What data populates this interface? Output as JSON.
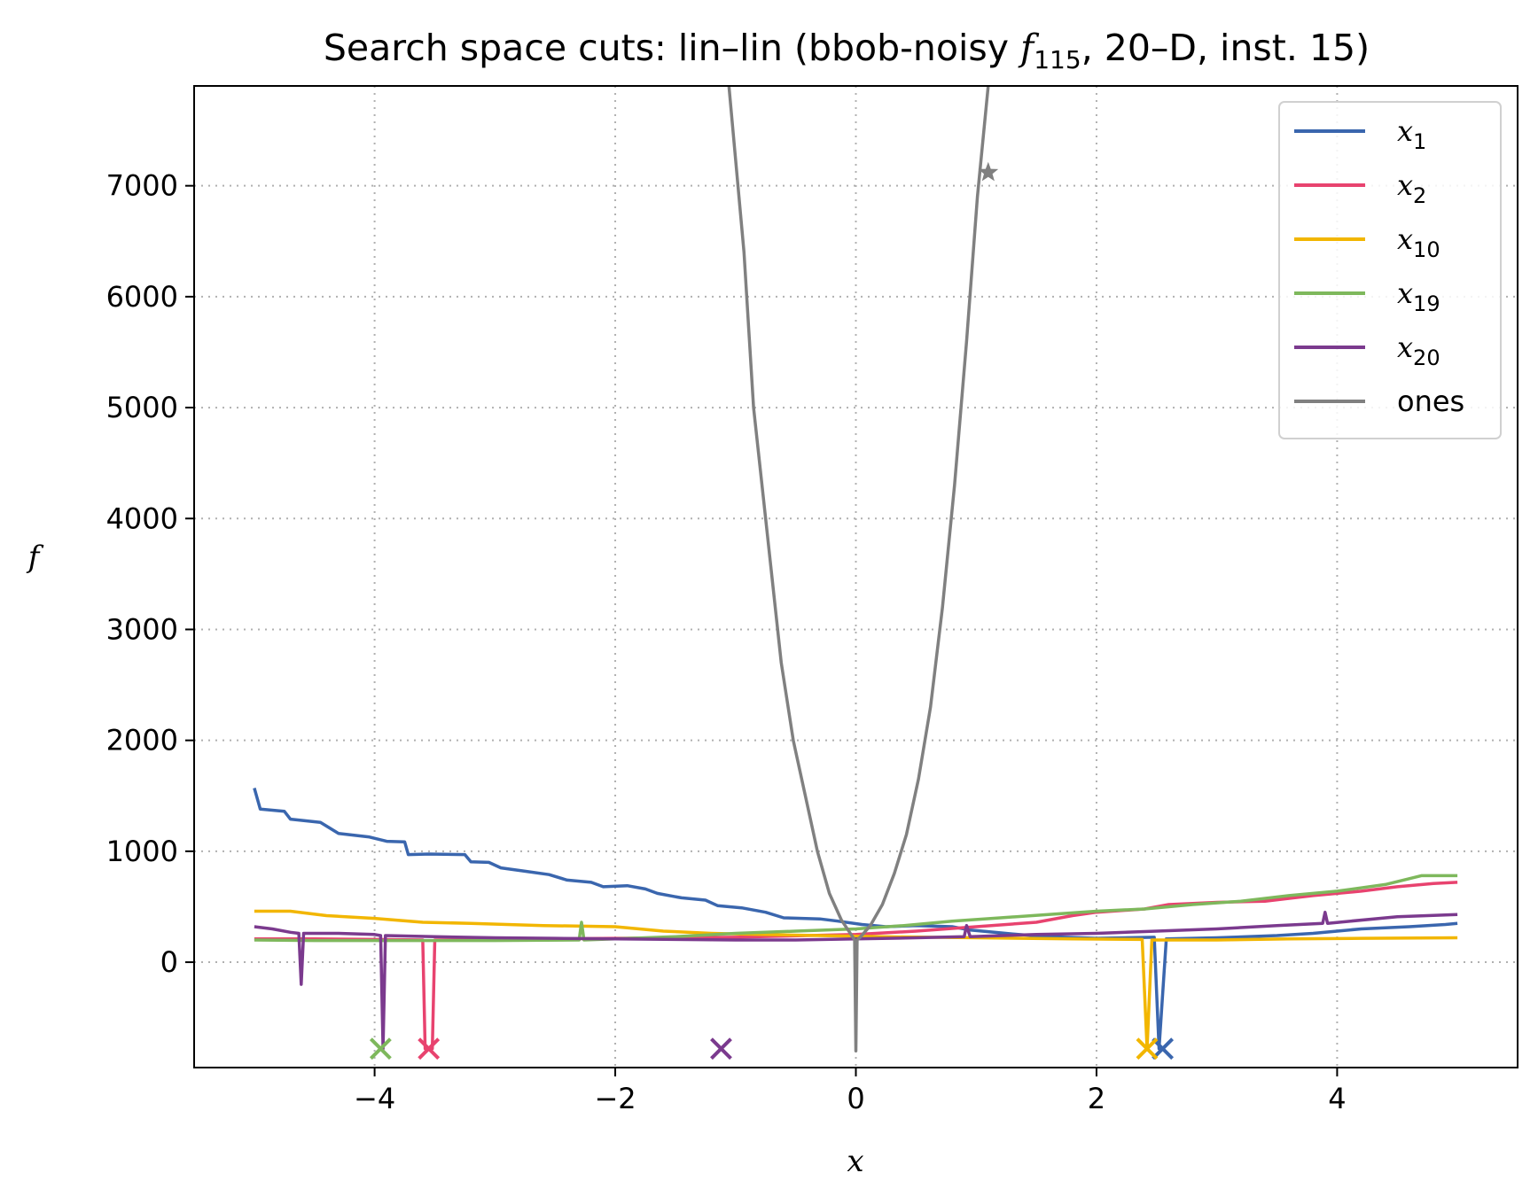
{
  "chart_data": {
    "type": "line",
    "title": {
      "prefix": "Search space cuts: lin–lin (bbob-noisy ",
      "func_symbol": "f",
      "func_index": "115",
      "suffix": ", 20–D, inst. 15)"
    },
    "xlabel": "x",
    "ylabel": "f",
    "xlim": [
      -5.5,
      5.5
    ],
    "ylim": [
      -950,
      7900
    ],
    "xticks": [
      {
        "value": -4,
        "label": "−4"
      },
      {
        "value": -2,
        "label": "−2"
      },
      {
        "value": 0,
        "label": "0"
      },
      {
        "value": 2,
        "label": "2"
      },
      {
        "value": 4,
        "label": "4"
      }
    ],
    "yticks": [
      {
        "value": 0,
        "label": "0"
      },
      {
        "value": 1000,
        "label": "1000"
      },
      {
        "value": 2000,
        "label": "2000"
      },
      {
        "value": 3000,
        "label": "3000"
      },
      {
        "value": 4000,
        "label": "4000"
      },
      {
        "value": 5000,
        "label": "5000"
      },
      {
        "value": 6000,
        "label": "6000"
      },
      {
        "value": 7000,
        "label": "7000"
      }
    ],
    "grid": true,
    "legend_position": "top-right",
    "series": [
      {
        "key": "x1",
        "name": "x",
        "sub": "1",
        "color": "#3A66AE",
        "points": [
          [
            -5,
            1570
          ],
          [
            -4.95,
            1380
          ],
          [
            -4.75,
            1360
          ],
          [
            -4.7,
            1290
          ],
          [
            -4.45,
            1260
          ],
          [
            -4.3,
            1160
          ],
          [
            -4.05,
            1130
          ],
          [
            -3.9,
            1090
          ],
          [
            -3.75,
            1085
          ],
          [
            -3.72,
            970
          ],
          [
            -3.55,
            975
          ],
          [
            -3.25,
            970
          ],
          [
            -3.2,
            905
          ],
          [
            -3.05,
            900
          ],
          [
            -2.95,
            850
          ],
          [
            -2.75,
            820
          ],
          [
            -2.55,
            790
          ],
          [
            -2.4,
            740
          ],
          [
            -2.2,
            720
          ],
          [
            -2.1,
            680
          ],
          [
            -1.9,
            690
          ],
          [
            -1.75,
            660
          ],
          [
            -1.65,
            620
          ],
          [
            -1.45,
            580
          ],
          [
            -1.25,
            560
          ],
          [
            -1.15,
            510
          ],
          [
            -0.95,
            490
          ],
          [
            -0.75,
            450
          ],
          [
            -0.6,
            400
          ],
          [
            -0.3,
            390
          ],
          [
            -0.15,
            370
          ],
          [
            0.05,
            340
          ],
          [
            0.25,
            320
          ],
          [
            0.5,
            330
          ],
          [
            0.8,
            320
          ],
          [
            0.95,
            290
          ],
          [
            1.15,
            270
          ],
          [
            1.35,
            250
          ],
          [
            1.6,
            230
          ],
          [
            2.0,
            215
          ],
          [
            2.48,
            225
          ],
          [
            2.52,
            -780
          ],
          [
            2.58,
            210
          ],
          [
            3.0,
            220
          ],
          [
            3.5,
            240
          ],
          [
            3.8,
            260
          ],
          [
            4.0,
            280
          ],
          [
            4.2,
            300
          ],
          [
            4.6,
            320
          ],
          [
            4.9,
            340
          ],
          [
            5,
            350
          ]
        ],
        "optimum": {
          "x": 2.55,
          "y": -780
        }
      },
      {
        "key": "x2",
        "name": "x",
        "sub": "2",
        "color": "#E8436F",
        "points": [
          [
            -5,
            210
          ],
          [
            -4.5,
            210
          ],
          [
            -4.0,
            205
          ],
          [
            -3.6,
            200
          ],
          [
            -3.58,
            -780
          ],
          [
            -3.52,
            -780
          ],
          [
            -3.5,
            200
          ],
          [
            -3.0,
            205
          ],
          [
            -2.0,
            215
          ],
          [
            -1.0,
            225
          ],
          [
            0,
            250
          ],
          [
            0.5,
            280
          ],
          [
            1.0,
            320
          ],
          [
            1.5,
            360
          ],
          [
            1.8,
            420
          ],
          [
            2.0,
            450
          ],
          [
            2.4,
            480
          ],
          [
            2.6,
            520
          ],
          [
            3.0,
            540
          ],
          [
            3.4,
            550
          ],
          [
            3.8,
            600
          ],
          [
            4.2,
            640
          ],
          [
            4.5,
            680
          ],
          [
            4.8,
            710
          ],
          [
            5,
            720
          ]
        ],
        "optimum": {
          "x": -3.55,
          "y": -780
        }
      },
      {
        "key": "x10",
        "name": "x",
        "sub": "10",
        "color": "#F2B600",
        "points": [
          [
            -5,
            460
          ],
          [
            -4.7,
            460
          ],
          [
            -4.4,
            420
          ],
          [
            -4.0,
            395
          ],
          [
            -3.6,
            360
          ],
          [
            -3.2,
            350
          ],
          [
            -2.6,
            330
          ],
          [
            -2.0,
            320
          ],
          [
            -1.6,
            280
          ],
          [
            -1.2,
            260
          ],
          [
            -0.8,
            250
          ],
          [
            -0.3,
            240
          ],
          [
            0.2,
            230
          ],
          [
            1.0,
            220
          ],
          [
            1.8,
            210
          ],
          [
            2.38,
            205
          ],
          [
            2.42,
            -780
          ],
          [
            2.46,
            200
          ],
          [
            3.0,
            200
          ],
          [
            3.6,
            210
          ],
          [
            4.2,
            215
          ],
          [
            5,
            220
          ]
        ],
        "optimum": {
          "x": 2.42,
          "y": -780
        }
      },
      {
        "key": "x19",
        "name": "x",
        "sub": "19",
        "color": "#7EB85C",
        "points": [
          [
            -5,
            200
          ],
          [
            -4.5,
            195
          ],
          [
            -4.0,
            195
          ],
          [
            -3.0,
            195
          ],
          [
            -2.3,
            200
          ],
          [
            -2.28,
            360
          ],
          [
            -2.26,
            200
          ],
          [
            -1.5,
            230
          ],
          [
            -1.0,
            260
          ],
          [
            -0.5,
            280
          ],
          [
            0,
            300
          ],
          [
            0.4,
            330
          ],
          [
            0.8,
            370
          ],
          [
            1.2,
            400
          ],
          [
            1.6,
            430
          ],
          [
            2.0,
            460
          ],
          [
            2.4,
            480
          ],
          [
            2.8,
            520
          ],
          [
            3.2,
            550
          ],
          [
            3.6,
            600
          ],
          [
            4.0,
            640
          ],
          [
            4.4,
            700
          ],
          [
            4.7,
            780
          ],
          [
            5,
            780
          ]
        ],
        "optimum": {
          "x": -3.95,
          "y": -780
        }
      },
      {
        "key": "x20",
        "name": "x",
        "sub": "20",
        "color": "#7B3A8E",
        "points": [
          [
            -5,
            320
          ],
          [
            -4.85,
            300
          ],
          [
            -4.7,
            270
          ],
          [
            -4.63,
            260
          ],
          [
            -4.61,
            -200
          ],
          [
            -4.59,
            260
          ],
          [
            -4.3,
            260
          ],
          [
            -4.0,
            250
          ],
          [
            -3.95,
            240
          ],
          [
            -3.93,
            -780
          ],
          [
            -3.91,
            240
          ],
          [
            -3.5,
            230
          ],
          [
            -3.0,
            220
          ],
          [
            -2.5,
            215
          ],
          [
            -2.0,
            210
          ],
          [
            -1.5,
            205
          ],
          [
            -1.0,
            200
          ],
          [
            -0.5,
            200
          ],
          [
            0,
            210
          ],
          [
            0.5,
            220
          ],
          [
            0.9,
            230
          ],
          [
            0.92,
            330
          ],
          [
            0.95,
            230
          ],
          [
            1.5,
            250
          ],
          [
            2.0,
            260
          ],
          [
            2.5,
            280
          ],
          [
            3.0,
            300
          ],
          [
            3.5,
            330
          ],
          [
            3.88,
            350
          ],
          [
            3.9,
            450
          ],
          [
            3.92,
            350
          ],
          [
            4.5,
            410
          ],
          [
            5,
            430
          ]
        ],
        "optimum": {
          "x": -1.12,
          "y": -780
        }
      },
      {
        "key": "ones",
        "name": "ones",
        "sub": "",
        "color": "#808080",
        "points": [
          [
            -1.08,
            8200
          ],
          [
            -1.03,
            7600
          ],
          [
            -0.93,
            6400
          ],
          [
            -0.85,
            5000
          ],
          [
            -0.75,
            4000
          ],
          [
            -0.62,
            2700
          ],
          [
            -0.52,
            2000
          ],
          [
            -0.42,
            1500
          ],
          [
            -0.32,
            1000
          ],
          [
            -0.22,
            620
          ],
          [
            -0.12,
            380
          ],
          [
            -0.04,
            250
          ],
          [
            -0.01,
            200
          ],
          [
            0,
            -800
          ],
          [
            0.01,
            200
          ],
          [
            0.04,
            230
          ],
          [
            0.12,
            330
          ],
          [
            0.22,
            520
          ],
          [
            0.32,
            800
          ],
          [
            0.42,
            1150
          ],
          [
            0.52,
            1650
          ],
          [
            0.62,
            2300
          ],
          [
            0.72,
            3200
          ],
          [
            0.82,
            4300
          ],
          [
            0.92,
            5600
          ],
          [
            1.01,
            6900
          ],
          [
            1.1,
            7900
          ],
          [
            1.14,
            8300
          ]
        ],
        "optimum": {
          "x": 1.1,
          "y": 7120,
          "marker": "star"
        }
      }
    ]
  }
}
